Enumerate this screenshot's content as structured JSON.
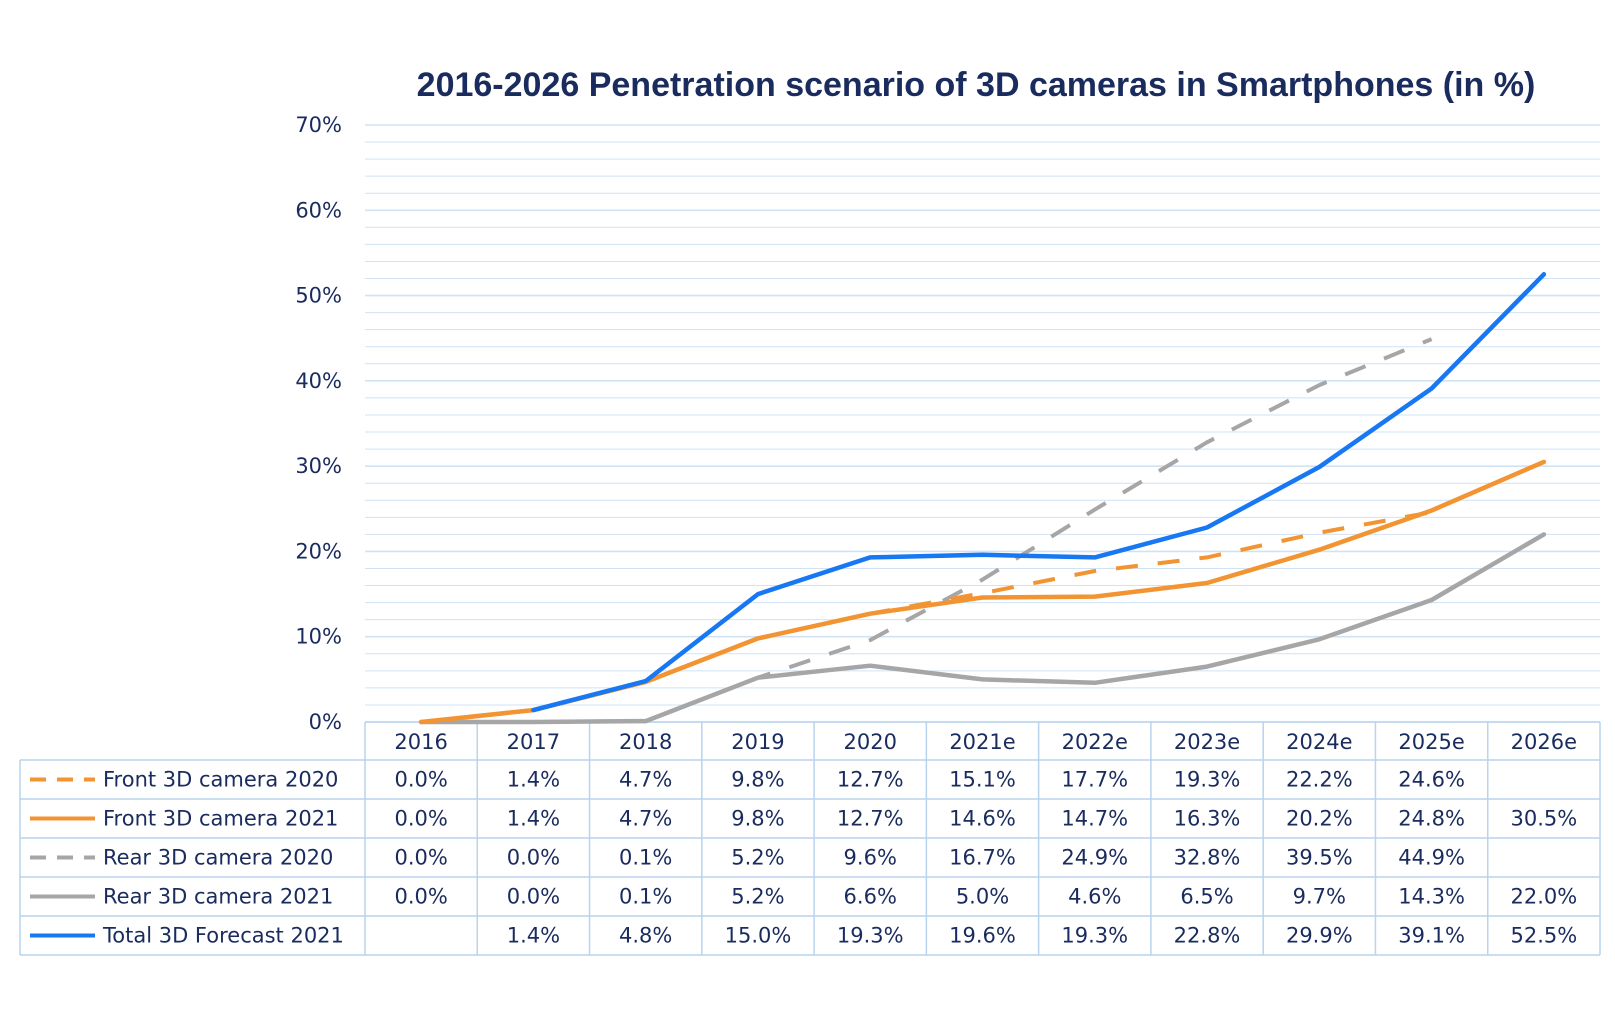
{
  "colors": {
    "text": "#1a2b5e",
    "grid": "#cfe3f5",
    "table_border": "#b8d4ee",
    "front": "#f39433",
    "rear": "#a6a6a6",
    "total": "#1877f2"
  },
  "chart_data": {
    "type": "line",
    "title": "2016-2026 Penetration scenario of 3D cameras in Smartphones (in %)",
    "xlabel": "",
    "ylabel": "",
    "ylim": [
      0,
      70
    ],
    "yticks": [
      "0%",
      "10%",
      "20%",
      "30%",
      "40%",
      "50%",
      "60%",
      "70%"
    ],
    "grid": true,
    "legend": "data-table",
    "categories": [
      "2016",
      "2017",
      "2018",
      "2019",
      "2020",
      "2021e",
      "2022e",
      "2023e",
      "2024e",
      "2025e",
      "2026e"
    ],
    "series": [
      {
        "name": "Front 3D camera 2020",
        "color": "#f39433",
        "dashed": true,
        "values": [
          0.0,
          1.4,
          4.7,
          9.8,
          12.7,
          15.1,
          17.7,
          19.3,
          22.2,
          24.6,
          null
        ],
        "labels": [
          "0.0%",
          "1.4%",
          "4.7%",
          "9.8%",
          "12.7%",
          "15.1%",
          "17.7%",
          "19.3%",
          "22.2%",
          "24.6%",
          ""
        ]
      },
      {
        "name": "Front 3D camera 2021",
        "color": "#f39433",
        "dashed": false,
        "values": [
          0.0,
          1.4,
          4.7,
          9.8,
          12.7,
          14.6,
          14.7,
          16.3,
          20.2,
          24.8,
          30.5
        ],
        "labels": [
          "0.0%",
          "1.4%",
          "4.7%",
          "9.8%",
          "12.7%",
          "14.6%",
          "14.7%",
          "16.3%",
          "20.2%",
          "24.8%",
          "30.5%"
        ]
      },
      {
        "name": "Rear 3D camera 2020",
        "color": "#a6a6a6",
        "dashed": true,
        "values": [
          0.0,
          0.0,
          0.1,
          5.2,
          9.6,
          16.7,
          24.9,
          32.8,
          39.5,
          44.9,
          null
        ],
        "labels": [
          "0.0%",
          "0.0%",
          "0.1%",
          "5.2%",
          "9.6%",
          "16.7%",
          "24.9%",
          "32.8%",
          "39.5%",
          "44.9%",
          ""
        ]
      },
      {
        "name": "Rear 3D camera 2021",
        "color": "#a6a6a6",
        "dashed": false,
        "values": [
          0.0,
          0.0,
          0.1,
          5.2,
          6.6,
          5.0,
          4.6,
          6.5,
          9.7,
          14.3,
          22.0
        ],
        "labels": [
          "0.0%",
          "0.0%",
          "0.1%",
          "5.2%",
          "6.6%",
          "5.0%",
          "4.6%",
          "6.5%",
          "9.7%",
          "14.3%",
          "22.0%"
        ]
      },
      {
        "name": "Total 3D Forecast 2021",
        "color": "#1877f2",
        "dashed": false,
        "values": [
          null,
          1.4,
          4.8,
          15.0,
          19.3,
          19.6,
          19.3,
          22.8,
          29.9,
          39.1,
          52.5
        ],
        "labels": [
          "",
          "1.4%",
          "4.8%",
          "15.0%",
          "19.3%",
          "19.6%",
          "19.3%",
          "22.8%",
          "29.9%",
          "39.1%",
          "52.5%"
        ]
      }
    ]
  }
}
